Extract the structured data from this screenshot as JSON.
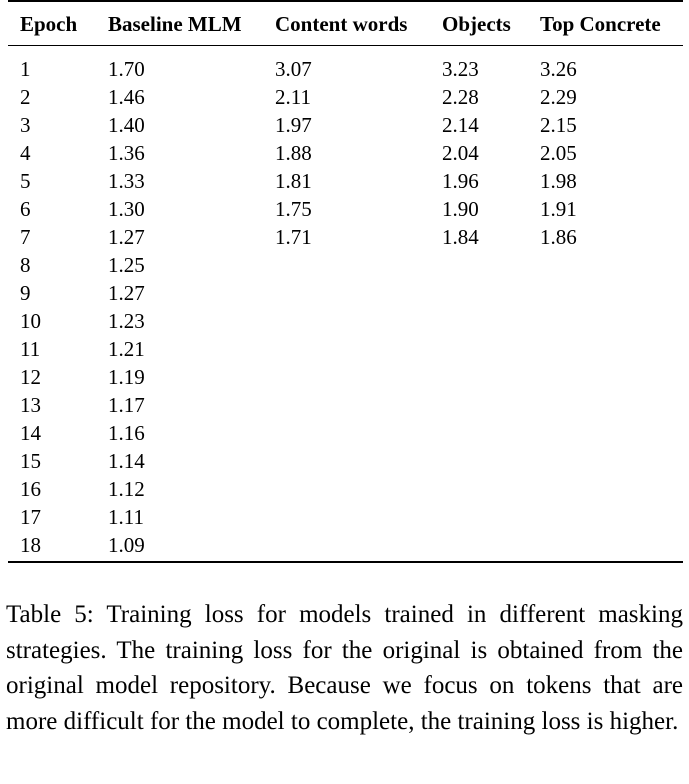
{
  "table": {
    "headers": [
      "Epoch",
      "Baseline MLM",
      "Content words",
      "Objects",
      "Top Concrete"
    ],
    "rows": [
      [
        "1",
        "1.70",
        "3.07",
        "3.23",
        "3.26"
      ],
      [
        "2",
        "1.46",
        "2.11",
        "2.28",
        "2.29"
      ],
      [
        "3",
        "1.40",
        "1.97",
        "2.14",
        "2.15"
      ],
      [
        "4",
        "1.36",
        "1.88",
        "2.04",
        "2.05"
      ],
      [
        "5",
        "1.33",
        "1.81",
        "1.96",
        "1.98"
      ],
      [
        "6",
        "1.30",
        "1.75",
        "1.90",
        "1.91"
      ],
      [
        "7",
        "1.27",
        "1.71",
        "1.84",
        "1.86"
      ],
      [
        "8",
        "1.25",
        "",
        "",
        ""
      ],
      [
        "9",
        "1.27",
        "",
        "",
        ""
      ],
      [
        "10",
        "1.23",
        "",
        "",
        ""
      ],
      [
        "11",
        "1.21",
        "",
        "",
        ""
      ],
      [
        "12",
        "1.19",
        "",
        "",
        ""
      ],
      [
        "13",
        "1.17",
        "",
        "",
        ""
      ],
      [
        "14",
        "1.16",
        "",
        "",
        ""
      ],
      [
        "15",
        "1.14",
        "",
        "",
        ""
      ],
      [
        "16",
        "1.12",
        "",
        "",
        ""
      ],
      [
        "17",
        "1.11",
        "",
        "",
        ""
      ],
      [
        "18",
        "1.09",
        "",
        "",
        ""
      ]
    ]
  },
  "caption": "Table 5: Training loss for models trained in different masking strategies. The training loss for the original is obtained from the original model repository. Because we focus on tokens that are more difficult for the model to complete, the training loss is higher."
}
